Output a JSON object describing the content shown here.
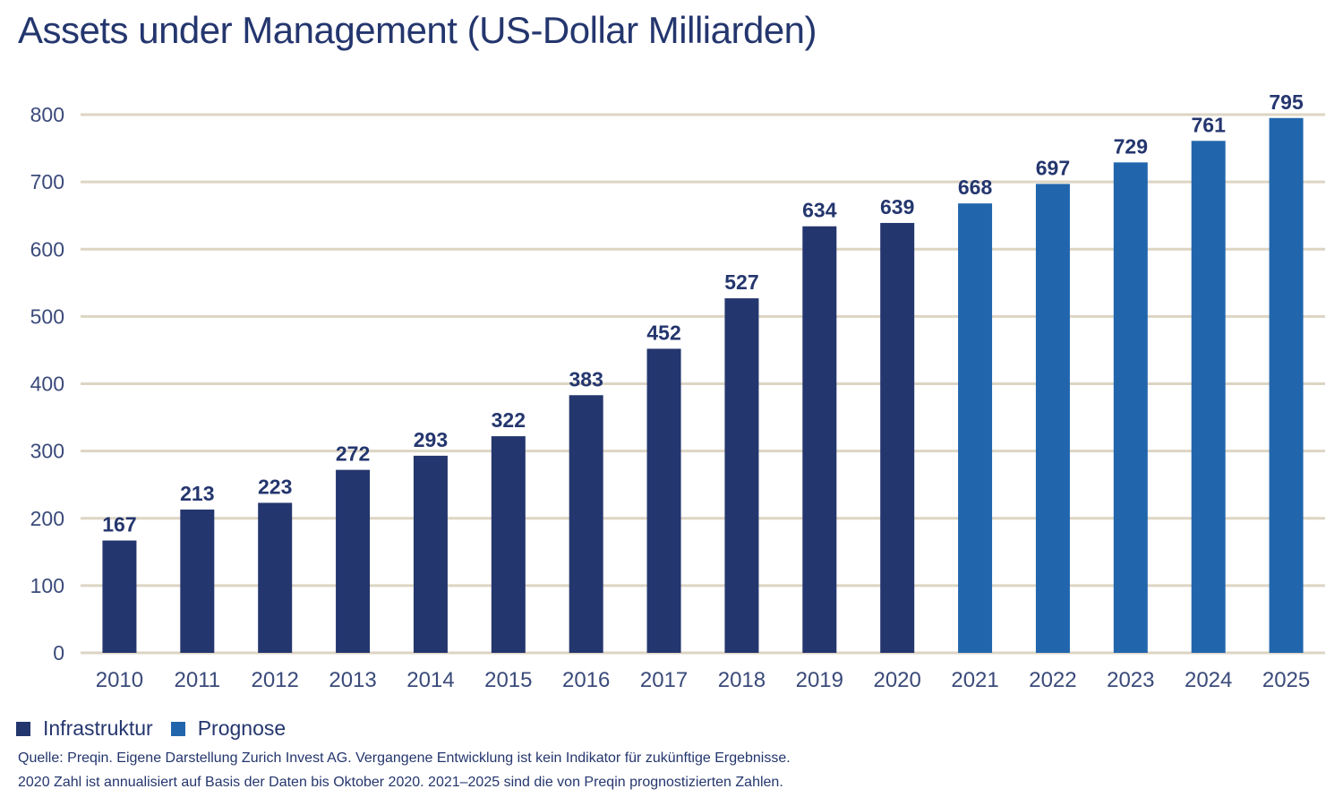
{
  "chart_data": {
    "type": "bar",
    "title": "Assets under Management (US-Dollar Milliarden)",
    "xlabel": "",
    "ylabel": "",
    "categories": [
      "2010",
      "2011",
      "2012",
      "2013",
      "2014",
      "2015",
      "2016",
      "2017",
      "2018",
      "2019",
      "2020",
      "2021",
      "2022",
      "2023",
      "2024",
      "2025"
    ],
    "series": [
      {
        "name": "Infrastruktur",
        "color": "#24366e",
        "values": [
          167,
          213,
          223,
          272,
          293,
          322,
          383,
          452,
          527,
          634,
          639,
          null,
          null,
          null,
          null,
          null
        ]
      },
      {
        "name": "Prognose",
        "color": "#2166ad",
        "values": [
          null,
          null,
          null,
          null,
          null,
          null,
          null,
          null,
          null,
          null,
          null,
          668,
          697,
          729,
          761,
          795
        ]
      }
    ],
    "ylim": [
      0,
      800
    ],
    "yticks": [
      0,
      100,
      200,
      300,
      400,
      500,
      600,
      700,
      800
    ],
    "grid": true,
    "gridColor": "#ddd5c4",
    "legend_position": "bottom-left",
    "data_labels": true
  },
  "legend": [
    {
      "label": "Infrastruktur",
      "color": "#24366e"
    },
    {
      "label": "Prognose",
      "color": "#2166ad"
    }
  ],
  "notes": {
    "source": "Quelle: Preqin. Eigene Darstellung Zurich Invest AG. Vergangene Entwicklung ist kein Indikator für zukünftige Ergebnisse.",
    "footnote": "2020 Zahl ist annualisiert auf Basis der Daten bis Oktober 2020. 2021–2025 sind die von Preqin prognostizierten Zahlen."
  }
}
